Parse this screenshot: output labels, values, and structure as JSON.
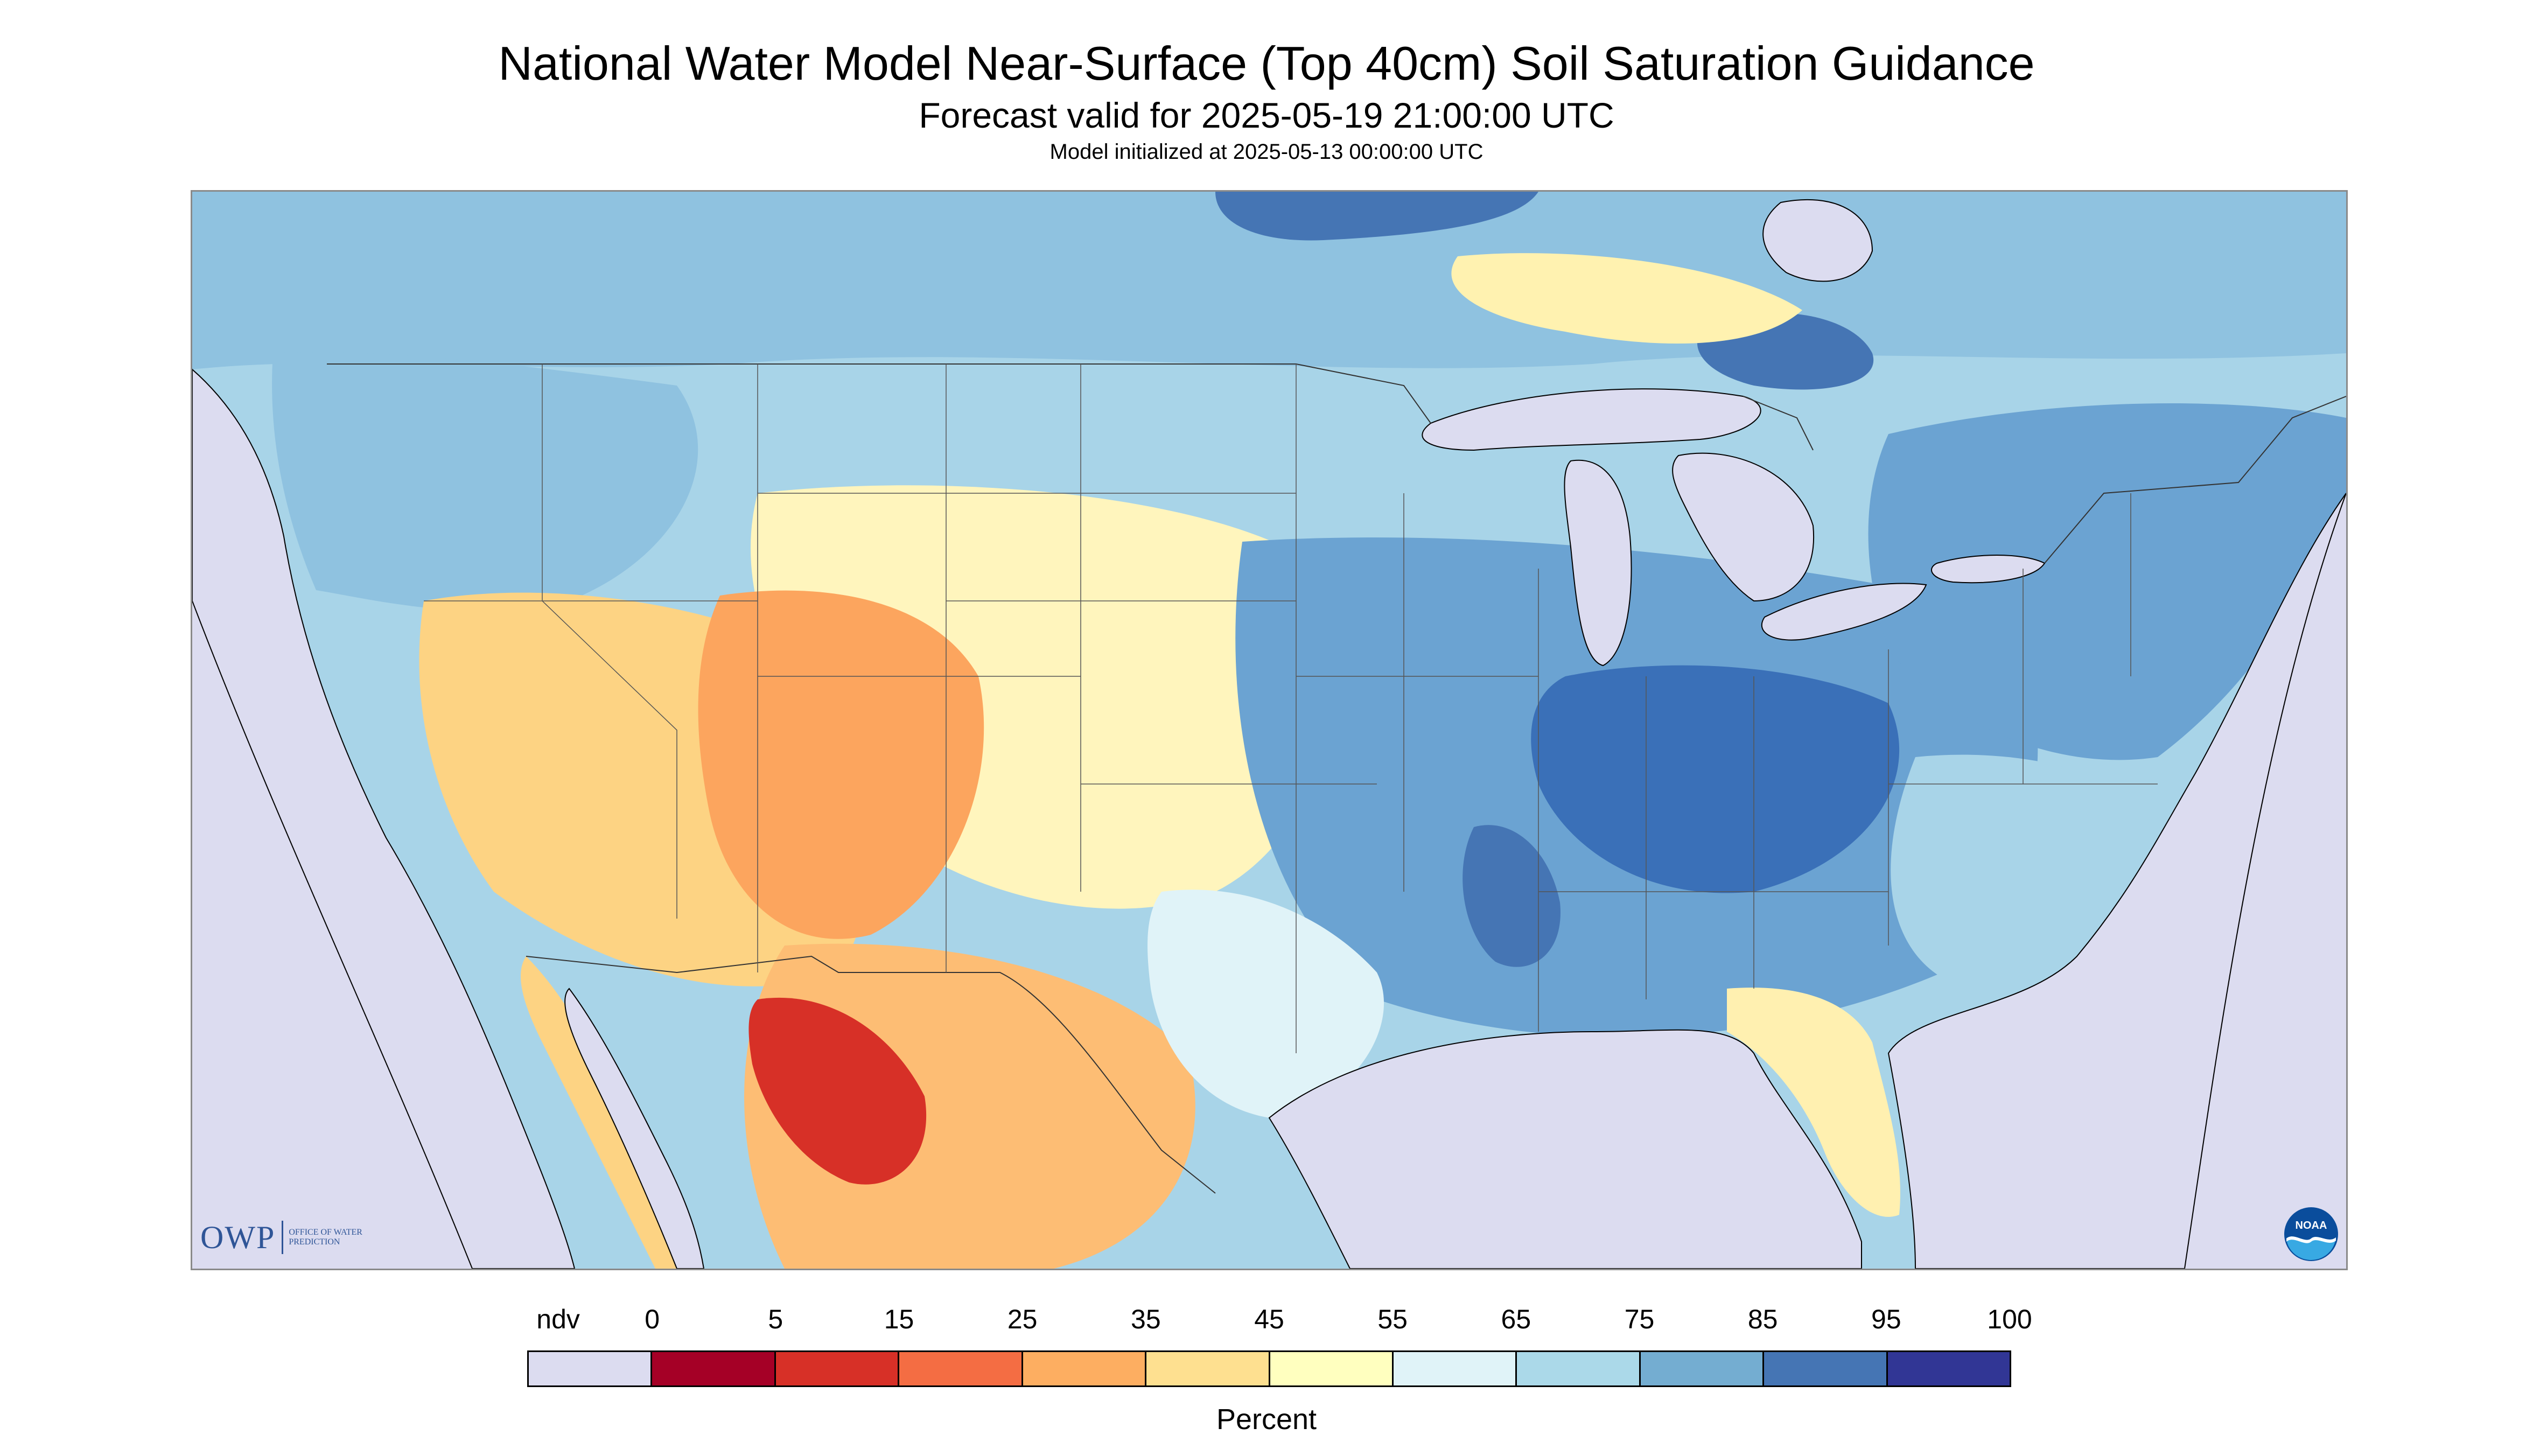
{
  "title": "National Water Model Near-Surface (Top 40cm) Soil Saturation Guidance",
  "subtitle": "Forecast valid for 2025-05-19 21:00:00 UTC",
  "init_line": "Model initialized at 2025-05-13 00:00:00 UTC",
  "logo_owp": {
    "mark": "OWP",
    "name": "OFFICE OF WATER PREDICTION"
  },
  "logo_noaa": {
    "text": "NOAA",
    "colors": [
      "#0a4d9c",
      "#38a9e3",
      "#ffffff"
    ]
  },
  "map": {
    "background_color": "#dcdcf0",
    "land_default": "#a8d4e8",
    "regions": [
      {
        "name": "canada-north",
        "color": "#8fc2e0"
      },
      {
        "name": "pacific-northwest",
        "color": "#8fc2e0"
      },
      {
        "name": "great-basin",
        "color": "#fdd383"
      },
      {
        "name": "four-corners",
        "color": "#fca55e"
      },
      {
        "name": "sonora-dry-core",
        "color": "#d73027"
      },
      {
        "name": "west-texas",
        "color": "#fdbd74"
      },
      {
        "name": "great-plains",
        "color": "#fff5bd"
      },
      {
        "name": "midwest-south",
        "color": "#6ba3d2"
      },
      {
        "name": "ohio-valley",
        "color": "#3a70b8"
      },
      {
        "name": "florida",
        "color": "#fff0b0"
      },
      {
        "name": "northeast",
        "color": "#6ba3d2"
      }
    ],
    "water_bodies": [
      "Lake Superior",
      "Lake Michigan",
      "Lake Huron",
      "Lake Erie",
      "Lake Ontario",
      "Gulf of Mexico",
      "Atlantic Ocean",
      "Pacific Ocean",
      "Hudson Bay"
    ]
  },
  "legend": {
    "ticks": [
      "ndv",
      "0",
      "5",
      "15",
      "25",
      "35",
      "45",
      "55",
      "65",
      "75",
      "85",
      "95",
      "100"
    ],
    "colors": [
      "#dcdcf0",
      "#a50026",
      "#d73027",
      "#f46d43",
      "#fdae61",
      "#fee090",
      "#ffffbf",
      "#e0f3f8",
      "#abd9e9",
      "#74add1",
      "#4575b4",
      "#313695"
    ],
    "units": "Percent"
  }
}
